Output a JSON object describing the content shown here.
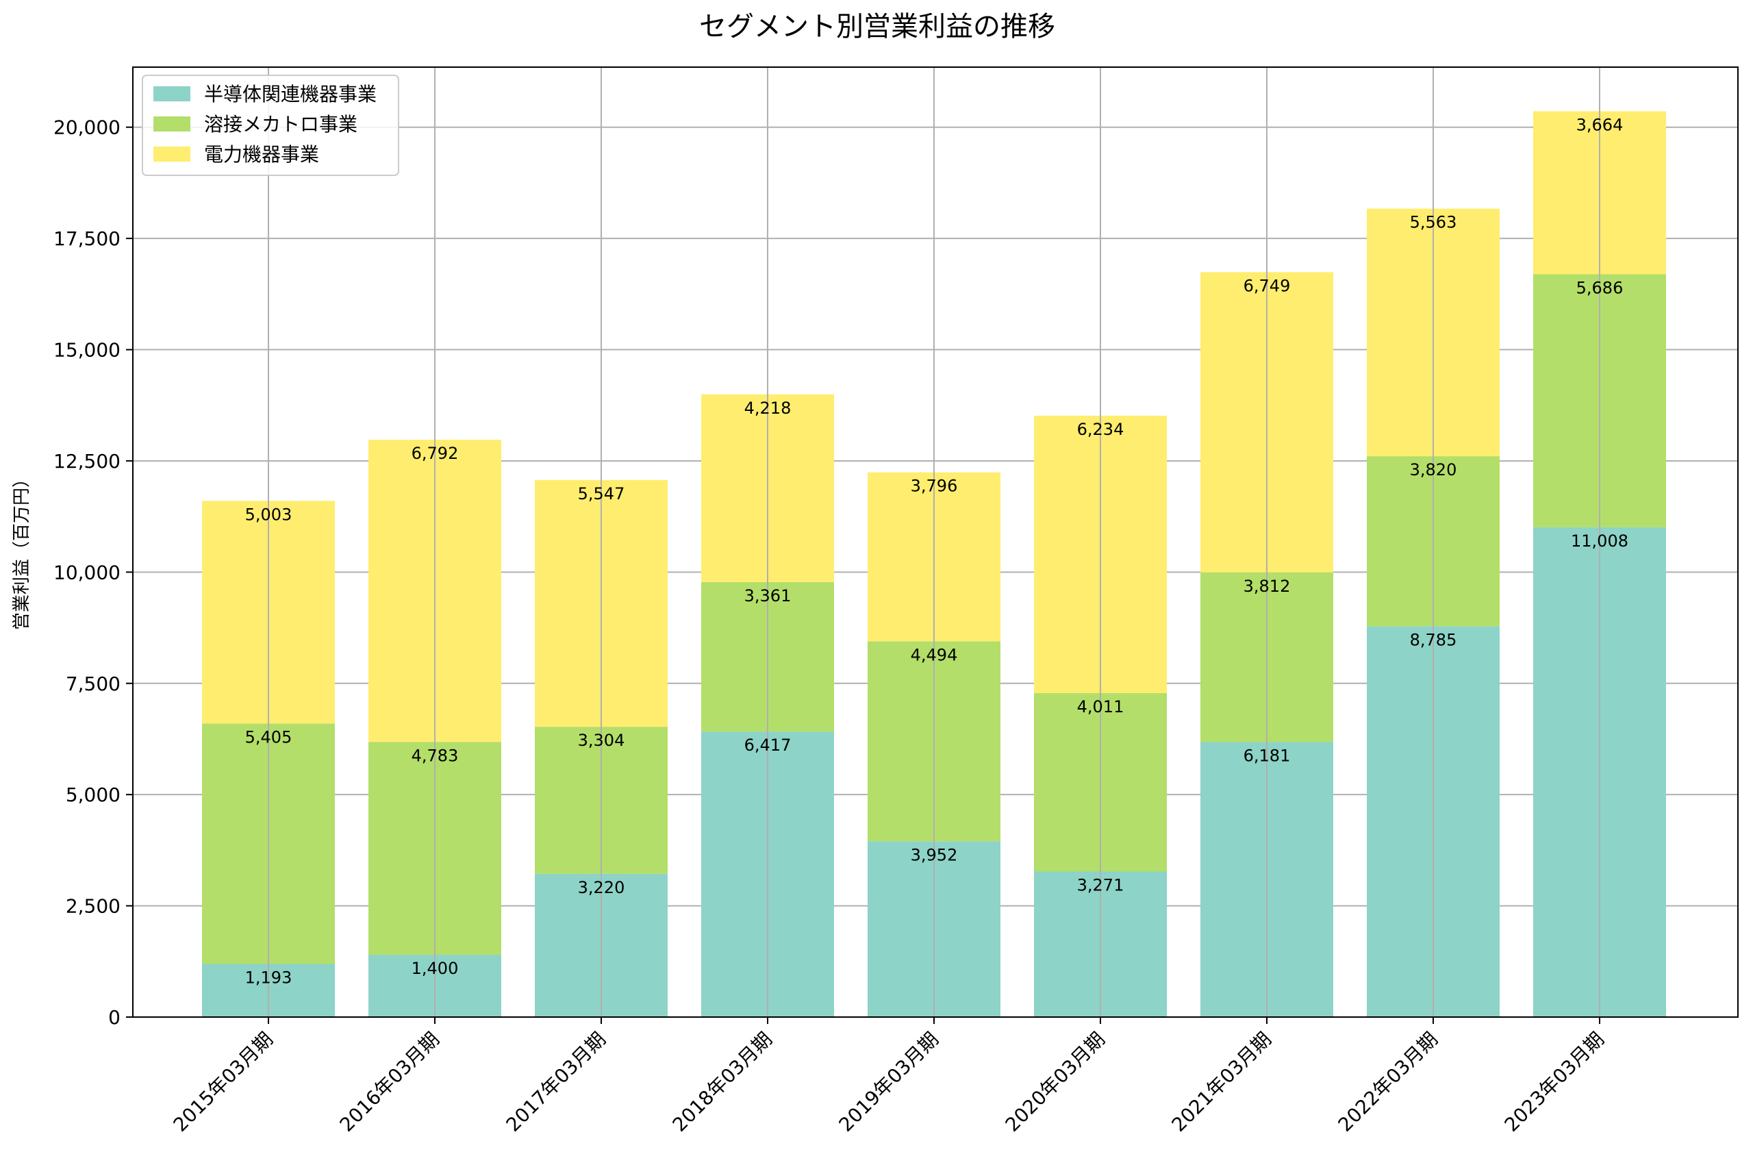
{
  "chart_data": {
    "type": "bar",
    "stacked": true,
    "title": "セグメント別営業利益の推移",
    "xlabel": "",
    "ylabel": "営業利益（百万円）",
    "ylim": [
      0,
      21350
    ],
    "yticks": [
      0,
      2500,
      5000,
      7500,
      10000,
      12500,
      15000,
      17500,
      20000
    ],
    "ytick_labels": [
      "0",
      "2,500",
      "5,000",
      "7,500",
      "10,000",
      "12,500",
      "15,000",
      "17,500",
      "20,000"
    ],
    "grid": true,
    "legend_position": "top-left",
    "categories": [
      "2015年03月期",
      "2016年03月期",
      "2017年03月期",
      "2018年03月期",
      "2019年03月期",
      "2020年03月期",
      "2021年03月期",
      "2022年03月期",
      "2023年03月期"
    ],
    "series": [
      {
        "name": "半導体関連機器事業",
        "color": "#8dd3c7",
        "values": [
          1193,
          1400,
          3220,
          6417,
          3952,
          3271,
          6181,
          8785,
          11008
        ],
        "labels": [
          "1,193",
          "1,400",
          "3,220",
          "6,417",
          "3,952",
          "3,271",
          "6,181",
          "8,785",
          "11,008"
        ]
      },
      {
        "name": "溶接メカトロ事業",
        "color": "#b3de69",
        "values": [
          5405,
          4783,
          3304,
          3361,
          4494,
          4011,
          3812,
          3820,
          5686
        ],
        "labels": [
          "5,405",
          "4,783",
          "3,304",
          "3,361",
          "4,494",
          "4,011",
          "3,812",
          "3,820",
          "5,686"
        ]
      },
      {
        "name": "電力機器事業",
        "color": "#ffed6f",
        "values": [
          5003,
          6792,
          5547,
          4218,
          3796,
          6234,
          6749,
          5563,
          3664
        ],
        "labels": [
          "5,003",
          "6,792",
          "5,547",
          "4,218",
          "3,796",
          "6,234",
          "6,749",
          "5,563",
          "3,664"
        ]
      }
    ]
  }
}
